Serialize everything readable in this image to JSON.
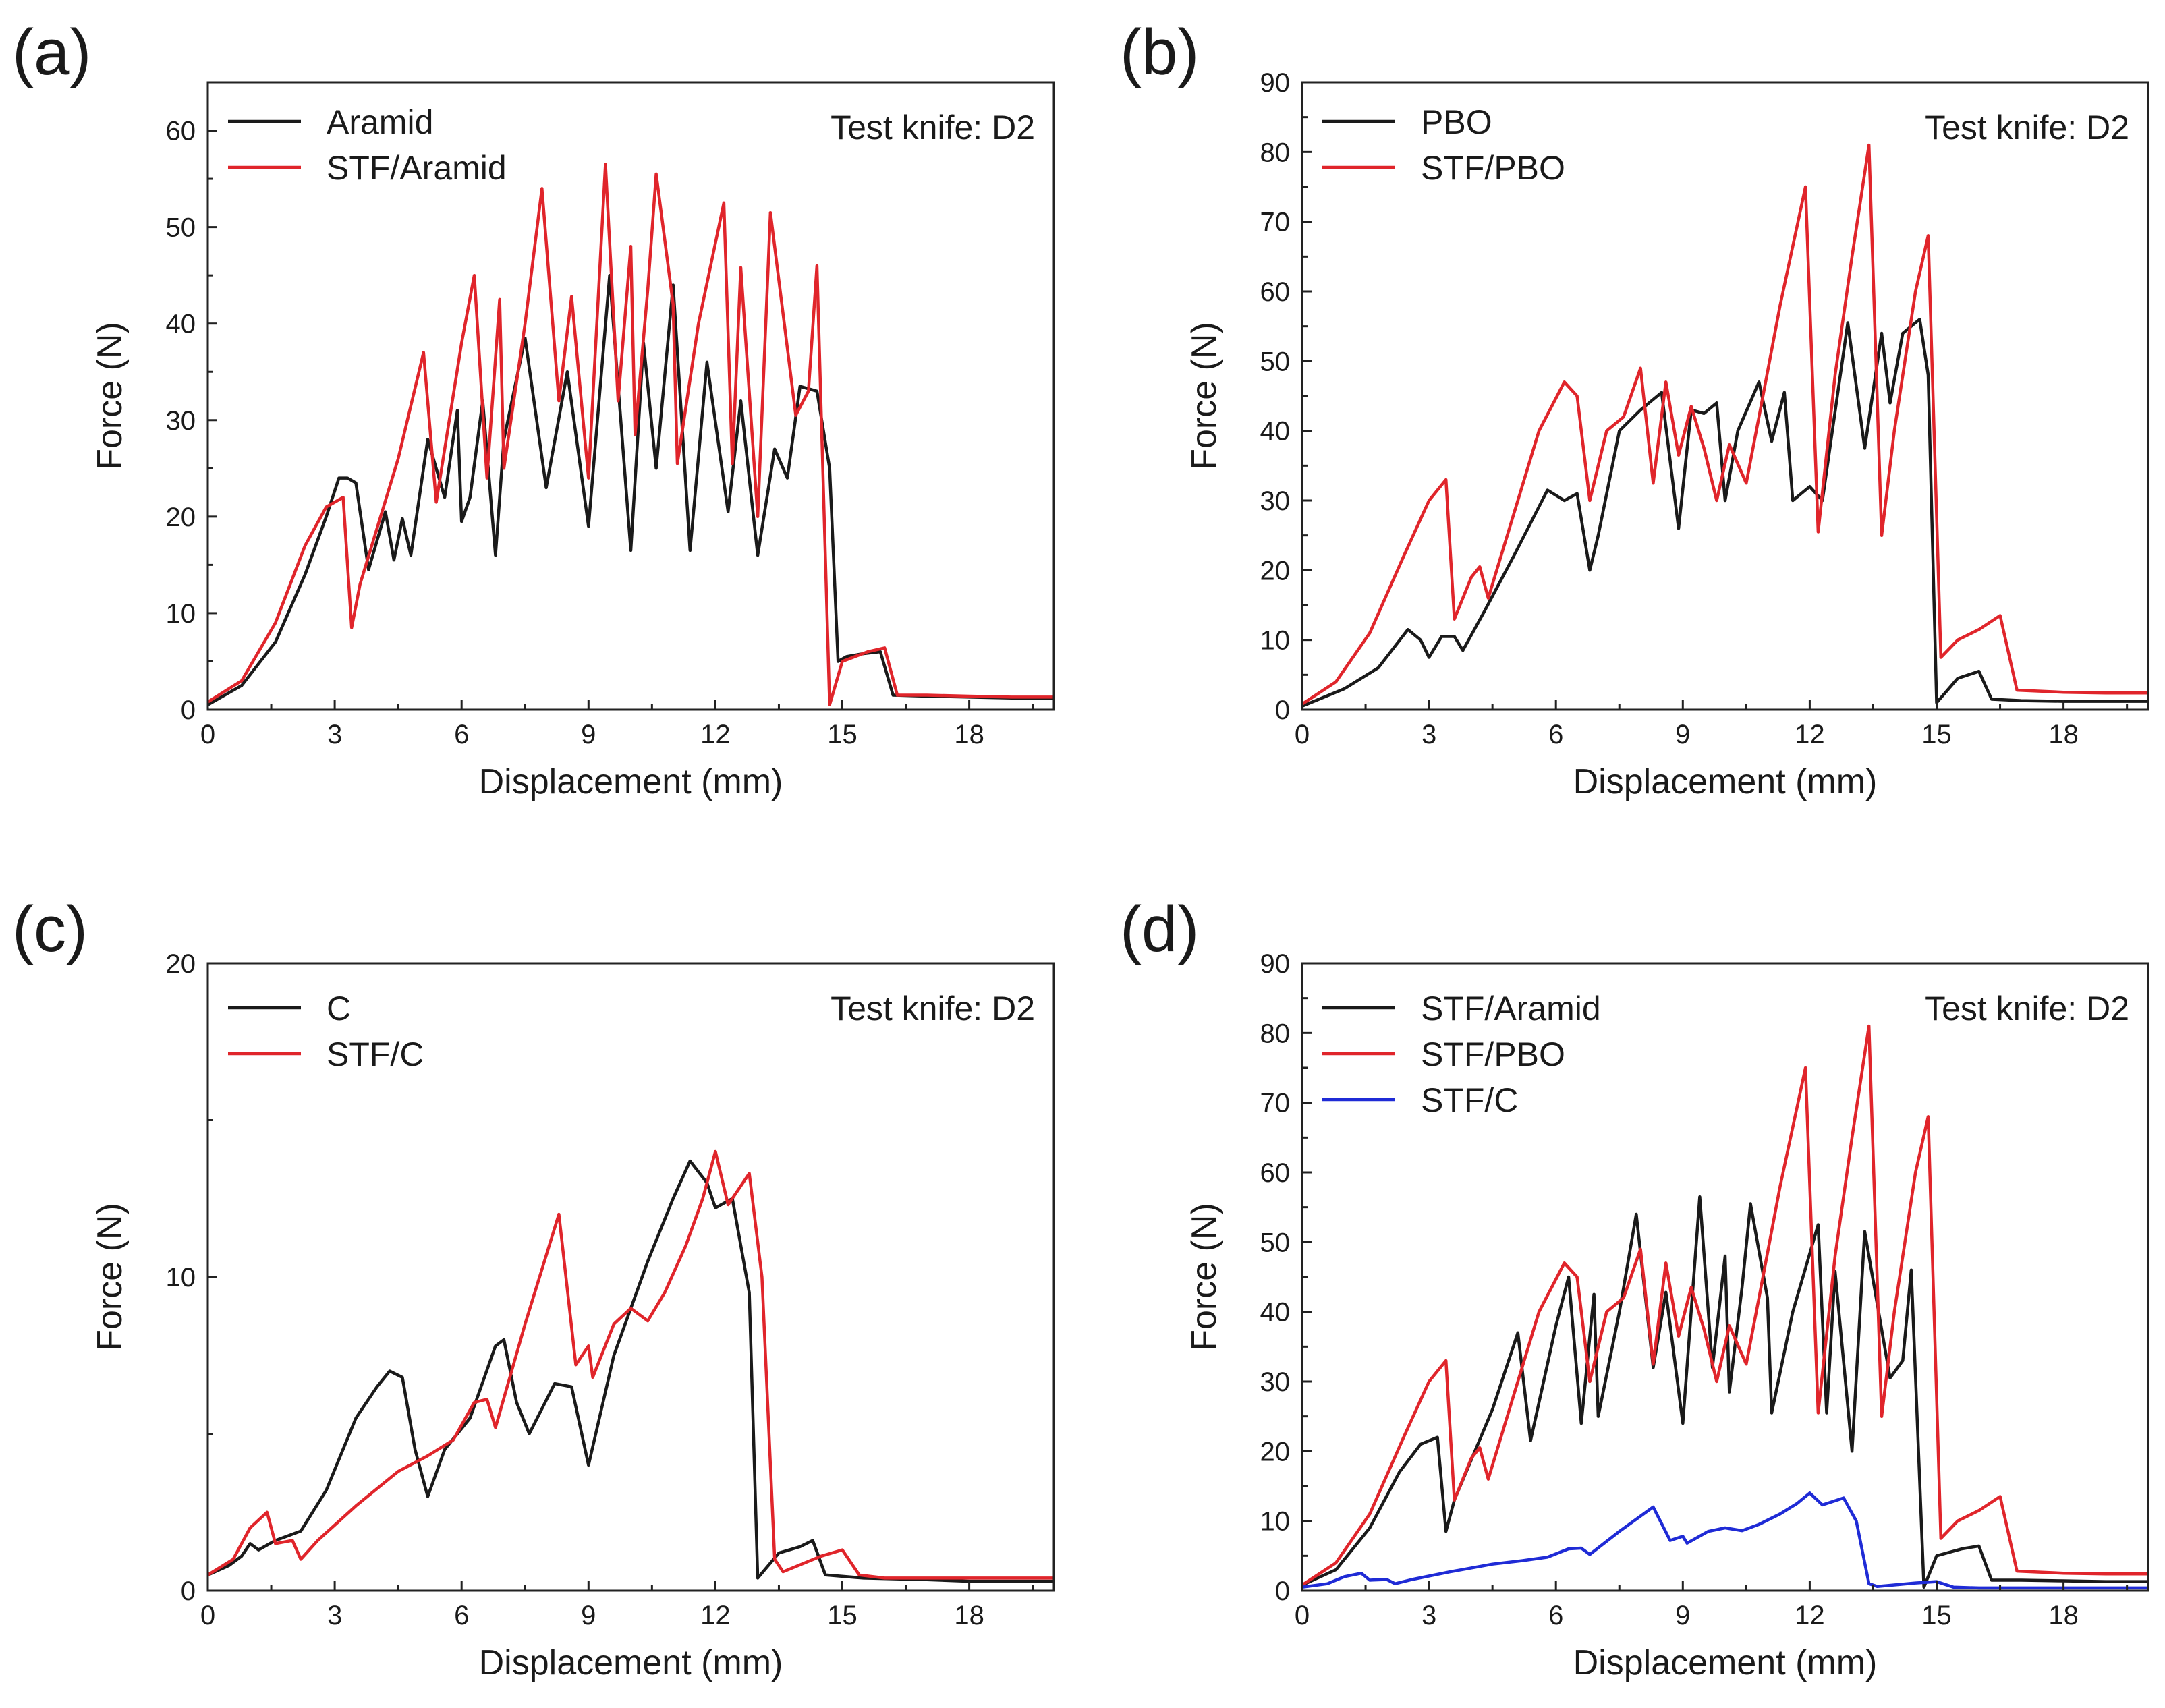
{
  "figure": {
    "colors": {
      "black": "#1a1a1a",
      "red": "#e0252b",
      "blue": "#1f2bd6"
    }
  },
  "chart_data": [
    {
      "panel_label": "(a)",
      "type": "line",
      "title": "",
      "annotation": "Test knife: D2",
      "xlabel": "Displacement (mm)",
      "ylabel": "Force (N)",
      "xlim": [
        0,
        20
      ],
      "ylim": [
        0,
        65
      ],
      "xticks": [
        0,
        3,
        6,
        9,
        12,
        15,
        18
      ],
      "xtick_labels": [
        "0",
        "3",
        "6",
        "9",
        "12",
        "15",
        "18"
      ],
      "yticks": [
        0,
        10,
        20,
        30,
        40,
        50,
        60
      ],
      "ytick_labels": [
        "0",
        "10",
        "20",
        "30",
        "40",
        "50",
        "60"
      ],
      "legend_position": "top-left",
      "series": [
        {
          "name": "Aramid",
          "color": "#1a1a1a",
          "x": [
            0,
            0.8,
            1.6,
            2.3,
            2.8,
            3.1,
            3.3,
            3.5,
            3.8,
            4.2,
            4.4,
            4.6,
            4.8,
            5.2,
            5.6,
            5.9,
            6.0,
            6.2,
            6.5,
            6.8,
            7.0,
            7.5,
            8.0,
            8.5,
            9.0,
            9.5,
            10.0,
            10.3,
            10.6,
            11.0,
            11.4,
            11.8,
            12.3,
            12.6,
            13.0,
            13.4,
            13.7,
            14.0,
            14.4,
            14.7,
            14.9,
            15.1,
            15.5,
            15.9,
            16.2,
            17,
            18,
            19,
            20
          ],
          "y": [
            0.5,
            2.5,
            7,
            14,
            20,
            24,
            24,
            23.5,
            14.5,
            20.5,
            15.5,
            19.8,
            16,
            28,
            22,
            31,
            19.5,
            22,
            32,
            16,
            28,
            38.5,
            23,
            35,
            19,
            45,
            16.5,
            38,
            25,
            44,
            16.5,
            36,
            20.5,
            32,
            16,
            27,
            24,
            33.5,
            33,
            25,
            5,
            5.5,
            5.8,
            6,
            1.5,
            1.4,
            1.3,
            1.2,
            1.2
          ]
        },
        {
          "name": "STF/Aramid",
          "color": "#e0252b",
          "x": [
            0,
            0.8,
            1.6,
            2.3,
            2.8,
            3.2,
            3.4,
            3.6,
            4.5,
            5.1,
            5.4,
            6.0,
            6.3,
            6.6,
            6.9,
            7.0,
            7.5,
            7.9,
            8.3,
            8.6,
            9.0,
            9.4,
            9.7,
            10.0,
            10.1,
            10.4,
            10.6,
            11.0,
            11.1,
            11.6,
            12.2,
            12.4,
            12.6,
            13.0,
            13.3,
            13.9,
            14.2,
            14.4,
            14.7,
            15.0,
            15.6,
            16.0,
            16.3,
            17,
            18,
            19,
            20
          ],
          "y": [
            0.8,
            3,
            9,
            17,
            21,
            22,
            8.5,
            13,
            26,
            37,
            21.5,
            38,
            45,
            24,
            42.5,
            25,
            40,
            54,
            32,
            42.8,
            24,
            56.5,
            32,
            48,
            28.5,
            43.5,
            55.5,
            42,
            25.5,
            40,
            52.5,
            25.5,
            45.8,
            20,
            51.5,
            30.5,
            33,
            46,
            0.5,
            5,
            6,
            6.4,
            1.5,
            1.5,
            1.4,
            1.3,
            1.3
          ]
        }
      ]
    },
    {
      "panel_label": "(b)",
      "type": "line",
      "title": "",
      "annotation": "Test knife: D2",
      "xlabel": "Displacement (mm)",
      "ylabel": "Force (N)",
      "xlim": [
        0,
        20
      ],
      "ylim": [
        0,
        90
      ],
      "xticks": [
        0,
        3,
        6,
        9,
        12,
        15,
        18
      ],
      "xtick_labels": [
        "0",
        "3",
        "6",
        "9",
        "12",
        "15",
        "18"
      ],
      "yticks": [
        0,
        10,
        20,
        30,
        40,
        50,
        60,
        70,
        80,
        90
      ],
      "ytick_labels": [
        "0",
        "10",
        "20",
        "30",
        "40",
        "50",
        "60",
        "70",
        "80",
        "90"
      ],
      "legend_position": "top-left",
      "series": [
        {
          "name": "PBO",
          "color": "#1a1a1a",
          "x": [
            0,
            1.0,
            1.8,
            2.5,
            2.8,
            3.0,
            3.3,
            3.6,
            3.8,
            4.3,
            5.0,
            5.8,
            6.2,
            6.5,
            6.8,
            7.0,
            7.5,
            8.0,
            8.5,
            8.9,
            9.2,
            9.5,
            9.8,
            10.0,
            10.3,
            10.8,
            11.1,
            11.4,
            11.6,
            12.0,
            12.3,
            12.9,
            13.3,
            13.7,
            13.9,
            14.2,
            14.6,
            14.8,
            15.0,
            15.5,
            16.0,
            16.3,
            17,
            18,
            19,
            20
          ],
          "y": [
            0.5,
            3,
            6,
            11.5,
            10,
            7.5,
            10.5,
            10.5,
            8.5,
            14,
            22,
            31.5,
            30,
            31,
            20,
            25,
            40,
            43,
            45.5,
            26,
            43,
            42.5,
            44,
            30,
            40,
            47,
            38.5,
            45.5,
            30,
            32,
            30,
            55.5,
            37.5,
            54,
            44,
            54,
            56,
            48,
            1,
            4.5,
            5.5,
            1.5,
            1.3,
            1.2,
            1.2,
            1.2
          ]
        },
        {
          "name": "STF/PBO",
          "color": "#e0252b",
          "x": [
            0,
            0.8,
            1.6,
            2.4,
            3.0,
            3.4,
            3.6,
            4.0,
            4.2,
            4.4,
            5.0,
            5.6,
            6.2,
            6.5,
            6.8,
            7.2,
            7.6,
            8.0,
            8.3,
            8.6,
            8.9,
            9.2,
            9.5,
            9.8,
            10.1,
            10.5,
            10.8,
            11.3,
            11.9,
            12.2,
            12.6,
            13.0,
            13.4,
            13.7,
            14.0,
            14.5,
            14.8,
            15.1,
            15.5,
            16.0,
            16.5,
            16.9,
            18,
            19,
            20
          ],
          "y": [
            0.8,
            4,
            11,
            22,
            30,
            33,
            13,
            19,
            20.5,
            16,
            28,
            40,
            47,
            45,
            30,
            40,
            42,
            49,
            32.5,
            47,
            36.5,
            43.5,
            37.5,
            30,
            38,
            32.5,
            42,
            58,
            75,
            25.5,
            48,
            65,
            81,
            25,
            40,
            60,
            68,
            7.5,
            10,
            11.5,
            13.5,
            2.8,
            2.5,
            2.4,
            2.4
          ]
        }
      ]
    },
    {
      "panel_label": "(c)",
      "type": "line",
      "title": "",
      "annotation": "Test knife: D2",
      "xlabel": "Displacement (mm)",
      "ylabel": "Force (N)",
      "xlim": [
        0,
        20
      ],
      "ylim": [
        0,
        20
      ],
      "xticks": [
        0,
        3,
        6,
        9,
        12,
        15,
        18
      ],
      "xtick_labels": [
        "0",
        "3",
        "6",
        "9",
        "12",
        "15",
        "18"
      ],
      "yticks": [
        0,
        10,
        20
      ],
      "ytick_labels": [
        "0",
        "10",
        "20"
      ],
      "legend_position": "top-left",
      "series": [
        {
          "name": "C",
          "color": "#1a1a1a",
          "x": [
            0,
            0.5,
            0.8,
            1.0,
            1.2,
            1.6,
            2.2,
            2.8,
            3.5,
            4.0,
            4.3,
            4.6,
            4.9,
            5.2,
            5.6,
            6.2,
            6.8,
            7.0,
            7.3,
            7.6,
            8.2,
            8.6,
            9.0,
            9.6,
            10.4,
            11.0,
            11.4,
            11.8,
            12.0,
            12.4,
            12.8,
            13.0,
            13.5,
            14.0,
            14.3,
            14.6,
            15.5,
            17,
            18,
            20
          ],
          "y": [
            0.5,
            0.8,
            1.1,
            1.5,
            1.3,
            1.6,
            1.9,
            3.2,
            5.5,
            6.5,
            7.0,
            6.8,
            4.5,
            3.0,
            4.5,
            5.5,
            7.8,
            8.0,
            6.0,
            5.0,
            6.6,
            6.5,
            4.0,
            7.5,
            10.5,
            12.5,
            13.7,
            13.0,
            12.2,
            12.5,
            9.5,
            0.4,
            1.2,
            1.4,
            1.6,
            0.5,
            0.4,
            0.35,
            0.3,
            0.3
          ]
        },
        {
          "name": "STF/C",
          "color": "#e0252b",
          "x": [
            0,
            0.6,
            1.0,
            1.4,
            1.6,
            2.0,
            2.2,
            2.6,
            3.5,
            4.5,
            5.2,
            5.8,
            6.3,
            6.6,
            6.8,
            7.5,
            8.3,
            8.7,
            9.0,
            9.1,
            9.6,
            10.0,
            10.4,
            10.8,
            11.3,
            11.7,
            12.0,
            12.3,
            12.8,
            13.1,
            13.4,
            13.6,
            14.5,
            15.0,
            15.4,
            16,
            17,
            18,
            20
          ],
          "y": [
            0.5,
            1.0,
            2.0,
            2.5,
            1.5,
            1.6,
            1.0,
            1.6,
            2.7,
            3.8,
            4.3,
            4.8,
            6.0,
            6.1,
            5.2,
            8.5,
            12.0,
            7.2,
            7.8,
            6.8,
            8.5,
            9.0,
            8.6,
            9.5,
            11.0,
            12.5,
            14.0,
            12.3,
            13.3,
            10.0,
            1.0,
            0.6,
            1.1,
            1.3,
            0.5,
            0.4,
            0.4,
            0.4,
            0.4
          ]
        }
      ]
    },
    {
      "panel_label": "(d)",
      "type": "line",
      "title": "",
      "annotation": "Test knife: D2",
      "xlabel": "Displacement (mm)",
      "ylabel": "Force (N)",
      "xlim": [
        0,
        20
      ],
      "ylim": [
        0,
        90
      ],
      "xticks": [
        0,
        3,
        6,
        9,
        12,
        15,
        18
      ],
      "xtick_labels": [
        "0",
        "3",
        "6",
        "9",
        "12",
        "15",
        "18"
      ],
      "yticks": [
        0,
        10,
        20,
        30,
        40,
        50,
        60,
        70,
        80,
        90
      ],
      "ytick_labels": [
        "0",
        "10",
        "20",
        "30",
        "40",
        "50",
        "60",
        "70",
        "80",
        "90"
      ],
      "legend_position": "top-left",
      "series": [
        {
          "name": "STF/Aramid",
          "color": "#1a1a1a",
          "x": [
            0,
            0.8,
            1.6,
            2.3,
            2.8,
            3.2,
            3.4,
            3.6,
            4.5,
            5.1,
            5.4,
            6.0,
            6.3,
            6.6,
            6.9,
            7.0,
            7.5,
            7.9,
            8.3,
            8.6,
            9.0,
            9.4,
            9.7,
            10.0,
            10.1,
            10.4,
            10.6,
            11.0,
            11.1,
            11.6,
            12.2,
            12.4,
            12.6,
            13.0,
            13.3,
            13.9,
            14.2,
            14.4,
            14.7,
            15.0,
            15.6,
            16.0,
            16.3,
            17,
            18,
            19,
            20
          ],
          "y": [
            0.8,
            3,
            9,
            17,
            21,
            22,
            8.5,
            13,
            26,
            37,
            21.5,
            38,
            45,
            24,
            42.5,
            25,
            40,
            54,
            32,
            42.8,
            24,
            56.5,
            32,
            48,
            28.5,
            43.5,
            55.5,
            42,
            25.5,
            40,
            52.5,
            25.5,
            45.8,
            20,
            51.5,
            30.5,
            33,
            46,
            0.5,
            5,
            6,
            6.4,
            1.5,
            1.5,
            1.4,
            1.3,
            1.3
          ]
        },
        {
          "name": "STF/PBO",
          "color": "#e0252b",
          "x": [
            0,
            0.8,
            1.6,
            2.4,
            3.0,
            3.4,
            3.6,
            4.0,
            4.2,
            4.4,
            5.0,
            5.6,
            6.2,
            6.5,
            6.8,
            7.2,
            7.6,
            8.0,
            8.3,
            8.6,
            8.9,
            9.2,
            9.5,
            9.8,
            10.1,
            10.5,
            10.8,
            11.3,
            11.9,
            12.2,
            12.6,
            13.0,
            13.4,
            13.7,
            14.0,
            14.5,
            14.8,
            15.1,
            15.5,
            16.0,
            16.5,
            16.9,
            18,
            19,
            20
          ],
          "y": [
            0.8,
            4,
            11,
            22,
            30,
            33,
            13,
            19,
            20.5,
            16,
            28,
            40,
            47,
            45,
            30,
            40,
            42,
            49,
            32.5,
            47,
            36.5,
            43.5,
            37.5,
            30,
            38,
            32.5,
            42,
            58,
            75,
            25.5,
            48,
            65,
            81,
            25,
            40,
            60,
            68,
            7.5,
            10,
            11.5,
            13.5,
            2.8,
            2.5,
            2.4,
            2.4
          ]
        },
        {
          "name": "STF/C",
          "color": "#1f2bd6",
          "x": [
            0,
            0.6,
            1.0,
            1.4,
            1.6,
            2.0,
            2.2,
            2.6,
            3.5,
            4.5,
            5.2,
            5.8,
            6.3,
            6.6,
            6.8,
            7.5,
            8.3,
            8.7,
            9.0,
            9.1,
            9.6,
            10.0,
            10.4,
            10.8,
            11.3,
            11.7,
            12.0,
            12.3,
            12.8,
            13.1,
            13.4,
            13.6,
            14.5,
            15.0,
            15.4,
            16,
            17,
            18,
            20
          ],
          "y": [
            0.5,
            1.0,
            2.0,
            2.5,
            1.5,
            1.6,
            1.0,
            1.6,
            2.7,
            3.8,
            4.3,
            4.8,
            6.0,
            6.1,
            5.2,
            8.5,
            12.0,
            7.2,
            7.8,
            6.8,
            8.5,
            9.0,
            8.6,
            9.5,
            11.0,
            12.5,
            14.0,
            12.3,
            13.3,
            10.0,
            1.0,
            0.6,
            1.1,
            1.3,
            0.5,
            0.4,
            0.4,
            0.4,
            0.4
          ]
        }
      ]
    }
  ]
}
